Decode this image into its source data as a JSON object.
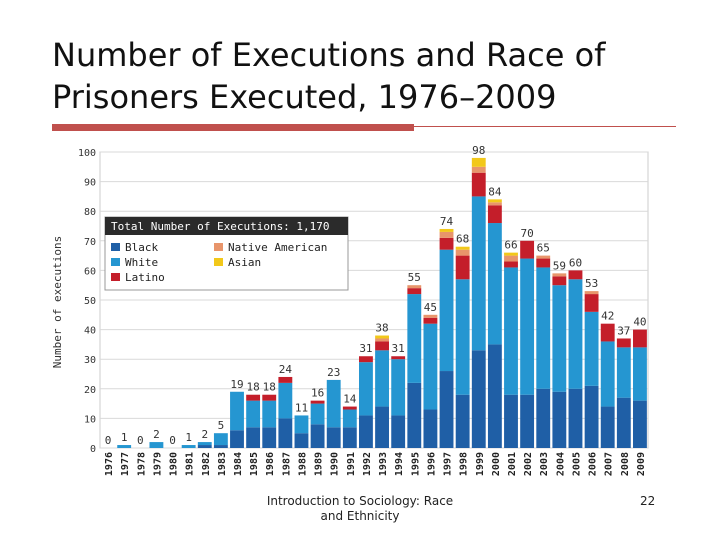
{
  "slide": {
    "title": "Number of Executions and Race of Prisoners Executed, 1976–2009",
    "footer": "Introduction to Sociology: Race and Ethnicity",
    "page_number": "22",
    "accent_color": "#c0504d"
  },
  "chart_data": {
    "type": "bar",
    "stacked": true,
    "ylabel": "Number of executions",
    "xlabel": "",
    "ylim": [
      0,
      100
    ],
    "y_ticks": [
      0,
      10,
      20,
      30,
      40,
      50,
      60,
      70,
      80,
      90,
      100
    ],
    "grid": true,
    "legend_position": "top-left",
    "legend_title": "Total Number of Executions: 1,170",
    "categories": [
      "1976",
      "1977",
      "1978",
      "1979",
      "1980",
      "1981",
      "1982",
      "1983",
      "1984",
      "1985",
      "1986",
      "1987",
      "1988",
      "1989",
      "1990",
      "1991",
      "1992",
      "1993",
      "1994",
      "1995",
      "1996",
      "1997",
      "1998",
      "1999",
      "2000",
      "2001",
      "2002",
      "2003",
      "2004",
      "2005",
      "2006",
      "2007",
      "2008",
      "2009"
    ],
    "totals": [
      0,
      1,
      0,
      2,
      0,
      1,
      2,
      5,
      19,
      18,
      18,
      24,
      11,
      16,
      23,
      14,
      31,
      38,
      31,
      55,
      45,
      74,
      68,
      98,
      84,
      66,
      70,
      65,
      59,
      60,
      53,
      42,
      37,
      40
    ],
    "series": [
      {
        "name": "Black",
        "color": "#1f5fa6",
        "values": [
          0,
          0,
          0,
          0,
          0,
          0,
          1,
          1,
          6,
          7,
          7,
          10,
          5,
          8,
          7,
          7,
          11,
          14,
          11,
          22,
          13,
          26,
          18,
          33,
          35,
          18,
          18,
          20,
          19,
          20,
          21,
          14,
          17,
          16
        ]
      },
      {
        "name": "White",
        "color": "#2596d1",
        "values": [
          0,
          1,
          0,
          2,
          0,
          1,
          1,
          4,
          13,
          9,
          9,
          12,
          6,
          7,
          16,
          6,
          18,
          19,
          19,
          30,
          29,
          41,
          39,
          52,
          41,
          43,
          46,
          41,
          36,
          37,
          25,
          22,
          17,
          18
        ]
      },
      {
        "name": "Latino",
        "color": "#c41e2a",
        "values": [
          0,
          0,
          0,
          0,
          0,
          0,
          0,
          0,
          0,
          2,
          2,
          2,
          0,
          1,
          0,
          1,
          2,
          3,
          1,
          2,
          2,
          4,
          8,
          8,
          6,
          2,
          6,
          3,
          3,
          3,
          6,
          6,
          3,
          6
        ]
      },
      {
        "name": "Native American",
        "color": "#e8956b",
        "values": [
          0,
          0,
          0,
          0,
          0,
          0,
          0,
          0,
          0,
          0,
          0,
          0,
          0,
          0,
          0,
          0,
          0,
          1,
          0,
          1,
          1,
          2,
          2,
          2,
          1,
          2,
          0,
          1,
          1,
          0,
          1,
          0,
          0,
          0
        ]
      },
      {
        "name": "Asian",
        "color": "#f2c81a",
        "values": [
          0,
          0,
          0,
          0,
          0,
          0,
          0,
          0,
          0,
          0,
          0,
          0,
          0,
          0,
          0,
          0,
          0,
          1,
          0,
          0,
          0,
          1,
          1,
          3,
          1,
          1,
          0,
          0,
          0,
          0,
          0,
          0,
          0,
          0
        ]
      }
    ],
    "legend_order": [
      "Black",
      "Native American",
      "White",
      "Asian",
      "Latino"
    ]
  }
}
